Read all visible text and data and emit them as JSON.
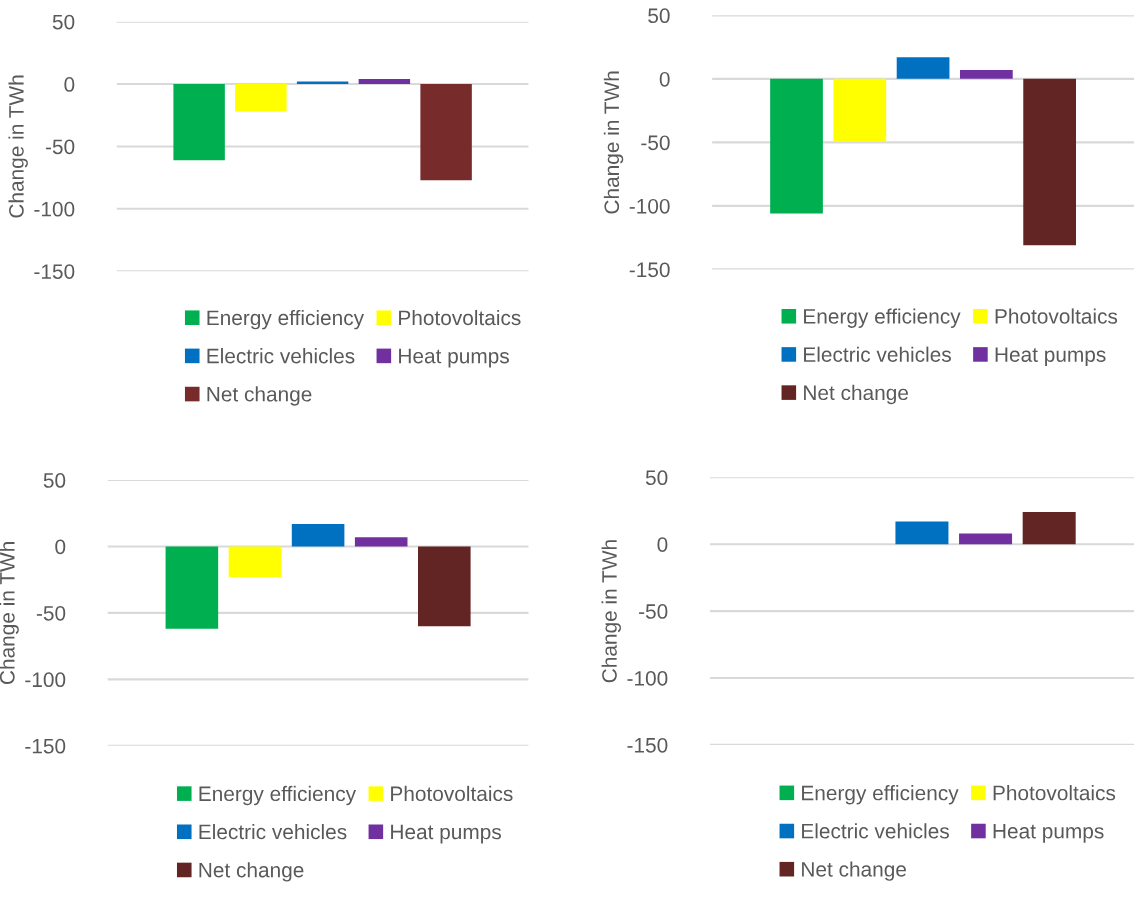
{
  "chart_data": [
    {
      "type": "bar",
      "ylabel": "Change in TWh",
      "categories": [
        null
      ],
      "ylim": [
        -150,
        50
      ],
      "yticks": [
        -150,
        -100,
        -50,
        0,
        50
      ],
      "grid": "y",
      "legend": "bottom",
      "series": [
        {
          "name": "Energy efficiency",
          "color": "#00b050",
          "values": [
            -61
          ]
        },
        {
          "name": "Photovoltaics",
          "color": "#ffff00",
          "values": [
            -22
          ]
        },
        {
          "name": "Electric vehicles",
          "color": "#0070c0",
          "values": [
            2
          ]
        },
        {
          "name": "Heat pumps",
          "color": "#7030a0",
          "values": [
            4
          ]
        },
        {
          "name": "Net change",
          "color": "#772b2b",
          "values": [
            -77
          ]
        }
      ]
    },
    {
      "type": "bar",
      "ylabel": "Change in TWh",
      "categories": [
        null
      ],
      "ylim": [
        -150,
        50
      ],
      "yticks": [
        -150,
        -100,
        -50,
        0,
        50
      ],
      "grid": "y",
      "legend": "bottom",
      "series": [
        {
          "name": "Energy efficiency",
          "color": "#00b050",
          "values": [
            -106
          ]
        },
        {
          "name": "Photovoltaics",
          "color": "#ffff00",
          "values": [
            -49
          ]
        },
        {
          "name": "Electric vehicles",
          "color": "#0070c0",
          "values": [
            17
          ]
        },
        {
          "name": "Heat pumps",
          "color": "#7030a0",
          "values": [
            7
          ]
        },
        {
          "name": "Net change",
          "color": "#632523",
          "values": [
            -131
          ]
        }
      ]
    },
    {
      "type": "bar",
      "ylabel": "Change in TWh",
      "categories": [
        null
      ],
      "ylim": [
        -150,
        50
      ],
      "yticks": [
        -150,
        -100,
        -50,
        0,
        50
      ],
      "grid": "y",
      "legend": "bottom",
      "series": [
        {
          "name": "Energy efficiency",
          "color": "#00b050",
          "values": [
            -62
          ]
        },
        {
          "name": "Photovoltaics",
          "color": "#ffff00",
          "values": [
            -23
          ]
        },
        {
          "name": "Electric vehicles",
          "color": "#0070c0",
          "values": [
            17
          ]
        },
        {
          "name": "Heat pumps",
          "color": "#7030a0",
          "values": [
            7
          ]
        },
        {
          "name": "Net change",
          "color": "#632523",
          "values": [
            -60
          ]
        }
      ]
    },
    {
      "type": "bar",
      "ylabel": "Change in TWh",
      "categories": [
        null
      ],
      "ylim": [
        -150,
        50
      ],
      "yticks": [
        -150,
        -100,
        -50,
        0,
        50
      ],
      "grid": "y",
      "legend": "bottom",
      "series": [
        {
          "name": "Energy efficiency",
          "color": "#00b050",
          "values": [
            null
          ]
        },
        {
          "name": "Photovoltaics",
          "color": "#ffff00",
          "values": [
            null
          ]
        },
        {
          "name": "Electric vehicles",
          "color": "#0070c0",
          "values": [
            17
          ]
        },
        {
          "name": "Heat pumps",
          "color": "#7030a0",
          "values": [
            8
          ]
        },
        {
          "name": "Net change",
          "color": "#632523",
          "values": [
            24
          ]
        }
      ]
    }
  ]
}
